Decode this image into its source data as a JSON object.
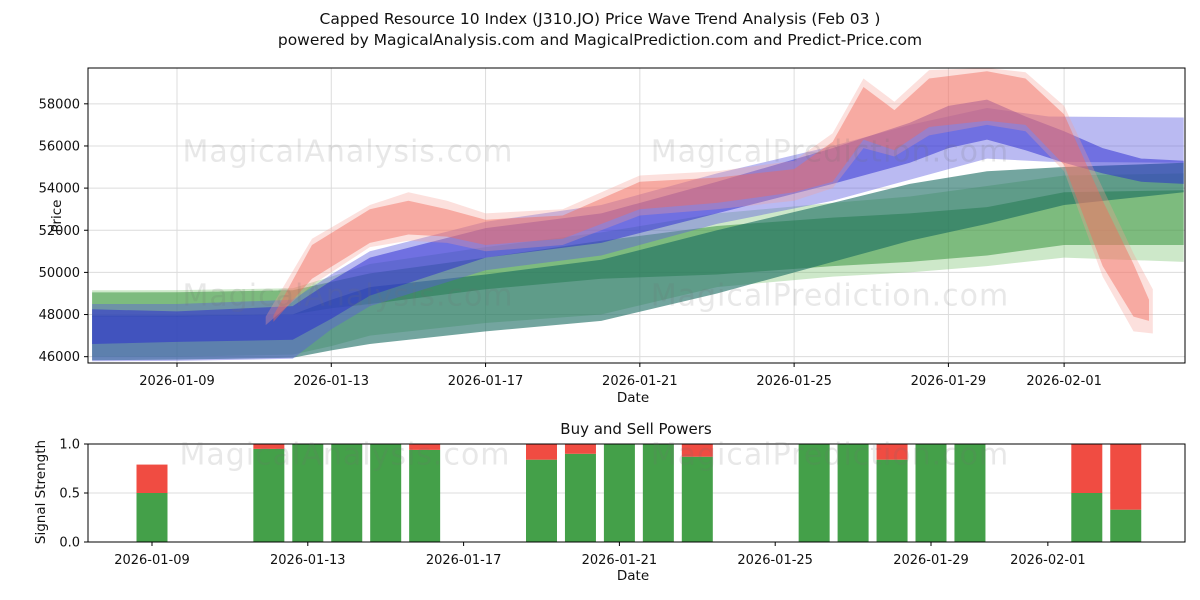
{
  "header": {
    "title_line1": "Capped Resource 10 Index (J310.JO) Price Wave Trend Analysis (Feb 03 )",
    "title_line2": "powered by MagicalAnalysis.com and MagicalPrediction.com and Predict-Price.com"
  },
  "watermarks": {
    "analysis": "MagicalAnalysis.com",
    "prediction": "MagicalPrediction.com"
  },
  "chart_data": [
    {
      "type": "area",
      "name": "price-wave-trend",
      "ylabel": "Price",
      "xlabel": "Date",
      "ylim": [
        45700,
        59700
      ],
      "grid": true,
      "legend": "none",
      "y_ticks": [
        46000,
        48000,
        50000,
        52000,
        54000,
        56000,
        58000
      ],
      "x_ticks": [
        {
          "label": "2026-01-09",
          "day": 0
        },
        {
          "label": "2026-01-13",
          "day": 4
        },
        {
          "label": "2026-01-17",
          "day": 8
        },
        {
          "label": "2026-01-21",
          "day": 12
        },
        {
          "label": "2026-01-25",
          "day": 16
        },
        {
          "label": "2026-01-29",
          "day": 20
        },
        {
          "label": "2026-02-01",
          "day": 23
        }
      ],
      "bands": [
        {
          "name": "light-green-envelope",
          "color": "#6fbe63",
          "opacity": 0.35,
          "points": [
            [
              -2.2,
              46000,
              49150
            ],
            [
              0,
              46000,
              49160
            ],
            [
              3,
              46100,
              49250
            ],
            [
              4,
              46500,
              49800
            ],
            [
              5,
              47000,
              50400
            ],
            [
              8,
              47600,
              51200
            ],
            [
              11,
              48000,
              51900
            ],
            [
              14,
              49300,
              52800
            ],
            [
              17,
              49800,
              53300
            ],
            [
              19,
              50000,
              53600
            ],
            [
              21,
              50300,
              54100
            ],
            [
              23,
              50700,
              54600
            ],
            [
              26.1,
              50500,
              54700
            ]
          ]
        },
        {
          "name": "green-band",
          "color": "#3c9640",
          "opacity": 0.55,
          "points": [
            [
              -2.2,
              47900,
              49050
            ],
            [
              0,
              47900,
              49060
            ],
            [
              3,
              48000,
              49150
            ],
            [
              4,
              48300,
              49550
            ],
            [
              5,
              48500,
              49950
            ],
            [
              8,
              49200,
              50700
            ],
            [
              11,
              49700,
              51500
            ],
            [
              14,
              49900,
              52200
            ],
            [
              17,
              50300,
              52600
            ],
            [
              19,
              50500,
              52800
            ],
            [
              21,
              50800,
              53100
            ],
            [
              23,
              51300,
              53800
            ],
            [
              26.1,
              51300,
              53900
            ]
          ]
        },
        {
          "name": "teal-band",
          "color": "#16695f",
          "opacity": 0.6,
          "points": [
            [
              -2.2,
              45830,
              47950
            ],
            [
              0,
              45860,
              47950
            ],
            [
              3,
              45950,
              48000
            ],
            [
              4,
              46300,
              48700
            ],
            [
              5,
              46600,
              49300
            ],
            [
              8,
              47200,
              49900
            ],
            [
              11,
              47700,
              50600
            ],
            [
              14,
              49000,
              52000
            ],
            [
              17,
              50500,
              53300
            ],
            [
              19,
              51500,
              54200
            ],
            [
              21,
              52300,
              54800
            ],
            [
              23,
              53200,
              55000
            ],
            [
              26.1,
              53800,
              55200
            ]
          ]
        },
        {
          "name": "light-blue-band",
          "color": "#5a5ae0",
          "opacity": 0.42,
          "points": [
            [
              -2.2,
              45780,
              48500
            ],
            [
              0,
              45800,
              48500
            ],
            [
              3,
              45900,
              48700
            ],
            [
              4,
              47300,
              49900
            ],
            [
              5,
              48400,
              51000
            ],
            [
              8,
              50100,
              52400
            ],
            [
              11,
              50800,
              53200
            ],
            [
              14,
              52300,
              54700
            ],
            [
              17,
              53400,
              56000
            ],
            [
              19,
              54400,
              57000
            ],
            [
              21,
              55400,
              57800
            ],
            [
              22.6,
              55250,
              57400
            ],
            [
              26.1,
              55200,
              57350
            ]
          ]
        },
        {
          "name": "dark-blue-band",
          "color": "#2626cf",
          "opacity": 0.5,
          "points": [
            [
              -2.2,
              46600,
              48250
            ],
            [
              0,
              46700,
              48150
            ],
            [
              3,
              46800,
              48400
            ],
            [
              4,
              47800,
              49600
            ],
            [
              5,
              48900,
              50700
            ],
            [
              8,
              50700,
              52100
            ],
            [
              11,
              51400,
              52800
            ],
            [
              14,
              52800,
              54300
            ],
            [
              17,
              54200,
              55900
            ],
            [
              19,
              55200,
              57100
            ],
            [
              20,
              55900,
              57900
            ],
            [
              21,
              56300,
              58200
            ],
            [
              22,
              55800,
              57400
            ],
            [
              23,
              55200,
              56700
            ],
            [
              24,
              54700,
              55900
            ],
            [
              25,
              54300,
              55400
            ],
            [
              26.1,
              54200,
              55300
            ]
          ]
        },
        {
          "name": "light-red-envelope",
          "color": "#f59f94",
          "opacity": 0.32,
          "points": [
            [
              2.3,
              47500,
              47900
            ],
            [
              3.5,
              49400,
              51600
            ],
            [
              5,
              51200,
              53200
            ],
            [
              6,
              51500,
              53800
            ],
            [
              7,
              51400,
              53400
            ],
            [
              8,
              51000,
              52800
            ],
            [
              10,
              51300,
              53000
            ],
            [
              12,
              52700,
              54600
            ],
            [
              14,
              53000,
              54800
            ],
            [
              16,
              53400,
              55300
            ],
            [
              17,
              54000,
              56600
            ],
            [
              17.8,
              55900,
              59200
            ],
            [
              18.6,
              55500,
              58100
            ],
            [
              19.5,
              56500,
              59600
            ],
            [
              21,
              57000,
              59700
            ],
            [
              22,
              56700,
              59500
            ],
            [
              23,
              54800,
              57900
            ],
            [
              24,
              49800,
              54000
            ],
            [
              24.8,
              47200,
              50900
            ],
            [
              25.3,
              47100,
              49200
            ]
          ]
        },
        {
          "name": "red-band",
          "color": "#f2685c",
          "opacity": 0.45,
          "points": [
            [
              2.5,
              47650,
              47950
            ],
            [
              3.5,
              49700,
              51300
            ],
            [
              5,
              51400,
              53000
            ],
            [
              6,
              51800,
              53400
            ],
            [
              7,
              51700,
              53000
            ],
            [
              8,
              51300,
              52500
            ],
            [
              10,
              51600,
              52700
            ],
            [
              12,
              53000,
              54300
            ],
            [
              14,
              53300,
              54500
            ],
            [
              16,
              53800,
              54900
            ],
            [
              17,
              54300,
              56200
            ],
            [
              17.8,
              56300,
              58800
            ],
            [
              18.6,
              55800,
              57700
            ],
            [
              19.5,
              56900,
              59200
            ],
            [
              21,
              57200,
              59550
            ],
            [
              22,
              57000,
              59200
            ],
            [
              23,
              55100,
              57500
            ],
            [
              24,
              50300,
              53400
            ],
            [
              24.8,
              47900,
              50400
            ],
            [
              25.2,
              47700,
              48700
            ]
          ]
        }
      ]
    },
    {
      "type": "bar",
      "name": "buy-sell-powers",
      "title": "Buy and Sell Powers",
      "ylabel": "Signal Strength",
      "xlabel": "Date",
      "ylim": [
        0,
        1.0
      ],
      "y_ticks": [
        0.0,
        0.5,
        1.0
      ],
      "x_ticks": [
        {
          "label": "2026-01-09",
          "day": 0
        },
        {
          "label": "2026-01-13",
          "day": 4
        },
        {
          "label": "2026-01-17",
          "day": 8
        },
        {
          "label": "2026-01-21",
          "day": 12
        },
        {
          "label": "2026-01-25",
          "day": 16
        },
        {
          "label": "2026-01-29",
          "day": 20
        },
        {
          "label": "2026-02-01",
          "day": 23
        }
      ],
      "buy_color": "#44a049",
      "sell_color": "#f04c42",
      "bars": [
        {
          "date": "2026-01-09",
          "day": 0,
          "buy": 0.5,
          "sell": 0.29
        },
        {
          "date": "2026-01-12",
          "day": 3,
          "buy": 0.95,
          "sell": 0.05
        },
        {
          "date": "2026-01-13",
          "day": 4,
          "buy": 1.0,
          "sell": 0.0
        },
        {
          "date": "2026-01-14",
          "day": 5,
          "buy": 1.0,
          "sell": 0.0
        },
        {
          "date": "2026-01-15",
          "day": 6,
          "buy": 1.0,
          "sell": 0.0
        },
        {
          "date": "2026-01-16",
          "day": 7,
          "buy": 0.94,
          "sell": 0.06
        },
        {
          "date": "2026-01-19",
          "day": 10,
          "buy": 0.84,
          "sell": 0.16
        },
        {
          "date": "2026-01-20",
          "day": 11,
          "buy": 0.9,
          "sell": 0.1
        },
        {
          "date": "2026-01-21",
          "day": 12,
          "buy": 1.0,
          "sell": 0.0
        },
        {
          "date": "2026-01-22",
          "day": 13,
          "buy": 1.0,
          "sell": 0.0
        },
        {
          "date": "2026-01-23",
          "day": 14,
          "buy": 0.87,
          "sell": 0.13
        },
        {
          "date": "2026-01-26",
          "day": 17,
          "buy": 1.0,
          "sell": 0.0
        },
        {
          "date": "2026-01-27",
          "day": 18,
          "buy": 1.0,
          "sell": 0.0
        },
        {
          "date": "2026-01-28",
          "day": 19,
          "buy": 0.84,
          "sell": 0.16
        },
        {
          "date": "2026-01-29",
          "day": 20,
          "buy": 1.0,
          "sell": 0.0
        },
        {
          "date": "2026-01-30",
          "day": 21,
          "buy": 1.0,
          "sell": 0.0
        },
        {
          "date": "2026-02-02",
          "day": 24,
          "buy": 0.5,
          "sell": 0.5
        },
        {
          "date": "2026-02-03",
          "day": 25,
          "buy": 0.33,
          "sell": 0.67
        }
      ]
    }
  ]
}
